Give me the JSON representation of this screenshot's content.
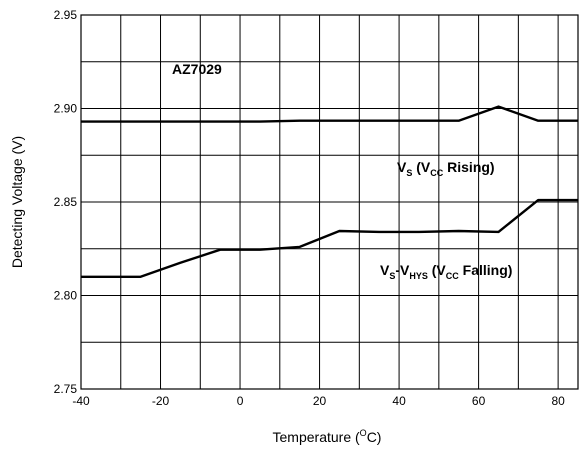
{
  "chart_data": {
    "type": "line",
    "xlabel": "Temperature (",
    "xlabel_unit_sup": "O",
    "xlabel_unit_tail": "C)",
    "ylabel": "Detecting Voltage (V)",
    "xlim": [
      -40,
      85
    ],
    "ylim": [
      2.75,
      2.95
    ],
    "x_ticks": [
      -40,
      -20,
      0,
      20,
      40,
      60,
      80
    ],
    "x_tick_labels": [
      "-40",
      "-20",
      "0",
      "20",
      "40",
      "60",
      "80"
    ],
    "y_ticks": [
      2.75,
      2.8,
      2.85,
      2.9,
      2.95
    ],
    "y_tick_labels": [
      "2.75",
      "2.80",
      "2.85",
      "2.90",
      "2.95"
    ],
    "grid": true,
    "annotations": {
      "device": "AZ7029",
      "rising": {
        "v": "V",
        "v_sub": "S",
        "open": " (V",
        "vcc_sub": "CC",
        "tail": " Rising)"
      },
      "falling": {
        "v": "V",
        "v_sub": "S",
        "dash": "-V",
        "hys_sub": "HYS",
        "open": " (V",
        "vcc_sub": "CC",
        "tail": " Falling)"
      }
    },
    "series": [
      {
        "x": [
          -40,
          -25,
          -15,
          -5,
          5,
          15,
          25,
          35,
          45,
          55,
          65,
          75,
          85
        ],
        "y": [
          2.893,
          2.893,
          2.893,
          2.893,
          2.893,
          2.8935,
          2.8935,
          2.8935,
          2.8935,
          2.8935,
          2.901,
          2.8935,
          2.8935
        ]
      },
      {
        "x": [
          -40,
          -25,
          -15,
          -5,
          5,
          15,
          25,
          35,
          45,
          55,
          65,
          75,
          85
        ],
        "y": [
          2.81,
          2.81,
          2.8175,
          2.8245,
          2.8245,
          2.826,
          2.8345,
          2.834,
          2.834,
          2.8345,
          2.834,
          2.851,
          2.851
        ]
      }
    ]
  }
}
